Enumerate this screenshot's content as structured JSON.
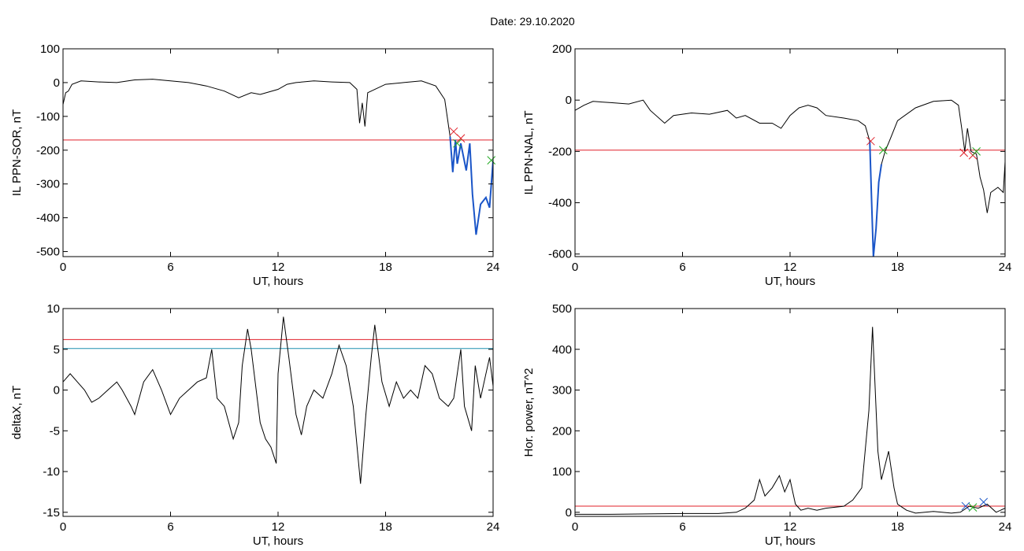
{
  "page": {
    "title": "Date:  29.10.2020"
  },
  "colors": {
    "trace": "#000000",
    "threshold_red": "#e0202a",
    "threshold_cyan": "#1e90b0",
    "highlight_blue": "#1a55c8",
    "marker_red": "#e0202a",
    "marker_green": "#22aa22",
    "marker_blue": "#1a55c8"
  },
  "chart_data": [
    {
      "id": "sor",
      "type": "line",
      "xlabel": "UT, hours",
      "ylabel": "IL PPN-SOR, nT",
      "xlim": [
        0,
        24
      ],
      "ylim": [
        -515,
        100
      ],
      "xticks": [
        0,
        6,
        12,
        18,
        24
      ],
      "yticks": [
        100,
        0,
        -100,
        -200,
        -300,
        -400,
        -500
      ],
      "thresholds": [
        {
          "y": -170,
          "color": "red"
        }
      ],
      "series": [
        {
          "points": [
            [
              0,
              -65
            ],
            [
              0.15,
              -30
            ],
            [
              0.3,
              -25
            ],
            [
              0.5,
              -5
            ],
            [
              1,
              5
            ],
            [
              2,
              2
            ],
            [
              3,
              0
            ],
            [
              4,
              8
            ],
            [
              5,
              10
            ],
            [
              6,
              5
            ],
            [
              7,
              0
            ],
            [
              8,
              -10
            ],
            [
              9,
              -25
            ],
            [
              9.8,
              -45
            ],
            [
              10.5,
              -30
            ],
            [
              11,
              -35
            ],
            [
              12,
              -20
            ],
            [
              12.5,
              -5
            ],
            [
              13,
              0
            ],
            [
              14,
              5
            ],
            [
              15,
              2
            ],
            [
              16,
              0
            ],
            [
              16.4,
              -20
            ],
            [
              16.55,
              -120
            ],
            [
              16.7,
              -60
            ],
            [
              16.85,
              -130
            ],
            [
              17,
              -30
            ],
            [
              18,
              -5
            ],
            [
              19,
              0
            ],
            [
              20,
              5
            ],
            [
              20.8,
              -10
            ],
            [
              21.3,
              -50
            ],
            [
              21.6,
              -160
            ],
            [
              21.75,
              -265
            ],
            [
              21.9,
              -170
            ],
            [
              22.0,
              -240
            ],
            [
              22.2,
              -180
            ],
            [
              22.5,
              -260
            ],
            [
              22.7,
              -180
            ],
            [
              22.85,
              -330
            ],
            [
              23.05,
              -450
            ],
            [
              23.3,
              -360
            ],
            [
              23.6,
              -340
            ],
            [
              23.8,
              -370
            ],
            [
              24,
              -230
            ]
          ]
        }
      ],
      "highlights": [
        {
          "color": "blue",
          "points": [
            [
              21.6,
              -160
            ],
            [
              21.75,
              -265
            ],
            [
              21.9,
              -170
            ],
            [
              22.0,
              -240
            ],
            [
              22.2,
              -180
            ],
            [
              22.5,
              -260
            ],
            [
              22.7,
              -180
            ],
            [
              22.85,
              -330
            ],
            [
              23.05,
              -450
            ],
            [
              23.3,
              -360
            ],
            [
              23.6,
              -340
            ],
            [
              23.8,
              -370
            ],
            [
              24,
              -230
            ]
          ]
        }
      ],
      "markers": [
        {
          "x": 21.8,
          "y": -145,
          "color": "red"
        },
        {
          "x": 22.2,
          "y": -165,
          "color": "red"
        },
        {
          "x": 22.0,
          "y": -180,
          "color": "green"
        },
        {
          "x": 23.9,
          "y": -230,
          "color": "green"
        }
      ]
    },
    {
      "id": "nal",
      "type": "line",
      "xlabel": "UT, hours",
      "ylabel": "IL PPN-NAL, nT",
      "xlim": [
        0,
        24
      ],
      "ylim": [
        -610,
        200
      ],
      "xticks": [
        0,
        6,
        12,
        18,
        24
      ],
      "yticks": [
        200,
        0,
        -200,
        -400,
        -600
      ],
      "thresholds": [
        {
          "y": -195,
          "color": "red"
        }
      ],
      "series": [
        {
          "points": [
            [
              0,
              -40
            ],
            [
              0.5,
              -20
            ],
            [
              1,
              -5
            ],
            [
              2,
              -10
            ],
            [
              3,
              -15
            ],
            [
              3.8,
              0
            ],
            [
              4.2,
              -40
            ],
            [
              5,
              -90
            ],
            [
              5.5,
              -60
            ],
            [
              6.5,
              -50
            ],
            [
              7.5,
              -55
            ],
            [
              8.5,
              -40
            ],
            [
              9,
              -70
            ],
            [
              9.5,
              -60
            ],
            [
              10.3,
              -90
            ],
            [
              11,
              -90
            ],
            [
              11.5,
              -110
            ],
            [
              12,
              -60
            ],
            [
              12.5,
              -30
            ],
            [
              13,
              -20
            ],
            [
              13.5,
              -30
            ],
            [
              14,
              -60
            ],
            [
              15,
              -70
            ],
            [
              15.8,
              -80
            ],
            [
              16.2,
              -100
            ],
            [
              16.45,
              -160
            ],
            [
              16.55,
              -390
            ],
            [
              16.65,
              -610
            ],
            [
              16.8,
              -500
            ],
            [
              16.95,
              -320
            ],
            [
              17.1,
              -250
            ],
            [
              17.3,
              -200
            ],
            [
              17.6,
              -150
            ],
            [
              18,
              -80
            ],
            [
              19,
              -30
            ],
            [
              20,
              -5
            ],
            [
              21,
              0
            ],
            [
              21.4,
              -20
            ],
            [
              21.6,
              -120
            ],
            [
              21.75,
              -200
            ],
            [
              21.9,
              -110
            ],
            [
              22.1,
              -200
            ],
            [
              22.4,
              -210
            ],
            [
              22.6,
              -300
            ],
            [
              22.8,
              -350
            ],
            [
              23.0,
              -440
            ],
            [
              23.2,
              -360
            ],
            [
              23.6,
              -340
            ],
            [
              23.9,
              -360
            ],
            [
              24,
              -240
            ]
          ]
        }
      ],
      "highlights": [
        {
          "color": "blue",
          "points": [
            [
              16.45,
              -160
            ],
            [
              16.55,
              -390
            ],
            [
              16.65,
              -610
            ],
            [
              16.8,
              -500
            ],
            [
              16.95,
              -320
            ],
            [
              17.1,
              -250
            ]
          ]
        }
      ],
      "markers": [
        {
          "x": 16.5,
          "y": -160,
          "color": "red"
        },
        {
          "x": 21.7,
          "y": -205,
          "color": "red"
        },
        {
          "x": 22.2,
          "y": -215,
          "color": "red"
        },
        {
          "x": 17.2,
          "y": -195,
          "color": "green"
        },
        {
          "x": 22.4,
          "y": -200,
          "color": "green"
        }
      ]
    },
    {
      "id": "deltax",
      "type": "line",
      "xlabel": "UT, hours",
      "ylabel": "deltaX, nT",
      "xlim": [
        0,
        24
      ],
      "ylim": [
        -15.5,
        10
      ],
      "xticks": [
        0,
        6,
        12,
        18,
        24
      ],
      "yticks": [
        10,
        5,
        0,
        -5,
        -10,
        -15
      ],
      "thresholds": [
        {
          "y": 6.2,
          "color": "red"
        },
        {
          "y": 5.1,
          "color": "cyan"
        }
      ],
      "series": [
        {
          "points": [
            [
              0,
              1
            ],
            [
              0.4,
              2
            ],
            [
              0.8,
              1
            ],
            [
              1.2,
              0
            ],
            [
              1.6,
              -1.5
            ],
            [
              2,
              -1
            ],
            [
              2.5,
              0
            ],
            [
              3,
              1
            ],
            [
              3.3,
              0
            ],
            [
              3.8,
              -2
            ],
            [
              4,
              -3
            ],
            [
              4.5,
              1
            ],
            [
              5,
              2.5
            ],
            [
              5.5,
              0
            ],
            [
              6,
              -3
            ],
            [
              6.5,
              -1
            ],
            [
              7,
              0
            ],
            [
              7.5,
              1
            ],
            [
              8,
              1.5
            ],
            [
              8.3,
              5
            ],
            [
              8.6,
              -1
            ],
            [
              9,
              -2
            ],
            [
              9.5,
              -6
            ],
            [
              9.8,
              -4
            ],
            [
              10,
              3
            ],
            [
              10.3,
              7.5
            ],
            [
              10.5,
              5
            ],
            [
              11,
              -4
            ],
            [
              11.3,
              -6
            ],
            [
              11.6,
              -7
            ],
            [
              11.9,
              -9
            ],
            [
              12,
              2
            ],
            [
              12.3,
              9
            ],
            [
              12.6,
              4
            ],
            [
              13,
              -3
            ],
            [
              13.3,
              -5.5
            ],
            [
              13.6,
              -2
            ],
            [
              14,
              0
            ],
            [
              14.5,
              -1
            ],
            [
              15,
              2
            ],
            [
              15.4,
              5.5
            ],
            [
              15.8,
              3
            ],
            [
              16.2,
              -2
            ],
            [
              16.6,
              -11.5
            ],
            [
              16.9,
              -3
            ],
            [
              17.2,
              4
            ],
            [
              17.4,
              8
            ],
            [
              17.8,
              1
            ],
            [
              18.2,
              -2
            ],
            [
              18.6,
              1
            ],
            [
              19,
              -1
            ],
            [
              19.4,
              0
            ],
            [
              19.8,
              -1
            ],
            [
              20.2,
              3
            ],
            [
              20.6,
              2
            ],
            [
              21,
              -1
            ],
            [
              21.5,
              -2
            ],
            [
              21.8,
              -1
            ],
            [
              22.2,
              5
            ],
            [
              22.4,
              -2
            ],
            [
              22.8,
              -5
            ],
            [
              23,
              3
            ],
            [
              23.3,
              -1
            ],
            [
              23.6,
              2
            ],
            [
              23.8,
              4
            ],
            [
              24,
              0.5
            ]
          ]
        }
      ],
      "highlights": [],
      "markers": []
    },
    {
      "id": "hor",
      "type": "line",
      "xlabel": "UT, hours",
      "ylabel": "Hor. power, nT^2",
      "xlim": [
        0,
        24
      ],
      "ylim": [
        -10,
        500
      ],
      "xticks": [
        0,
        6,
        12,
        18,
        24
      ],
      "yticks": [
        500,
        400,
        300,
        200,
        100,
        0
      ],
      "thresholds": [
        {
          "y": 15,
          "color": "red"
        }
      ],
      "series": [
        {
          "points": [
            [
              0,
              -5
            ],
            [
              2,
              -5
            ],
            [
              4,
              -4
            ],
            [
              6,
              -3
            ],
            [
              8,
              -3
            ],
            [
              9,
              0
            ],
            [
              9.5,
              10
            ],
            [
              10,
              30
            ],
            [
              10.3,
              80
            ],
            [
              10.6,
              40
            ],
            [
              11,
              60
            ],
            [
              11.4,
              90
            ],
            [
              11.7,
              50
            ],
            [
              12,
              80
            ],
            [
              12.3,
              20
            ],
            [
              12.6,
              5
            ],
            [
              13,
              10
            ],
            [
              13.5,
              5
            ],
            [
              14,
              10
            ],
            [
              15,
              15
            ],
            [
              15.5,
              30
            ],
            [
              16,
              60
            ],
            [
              16.4,
              250
            ],
            [
              16.6,
              455
            ],
            [
              16.9,
              150
            ],
            [
              17.1,
              80
            ],
            [
              17.5,
              150
            ],
            [
              17.8,
              60
            ],
            [
              18,
              20
            ],
            [
              18.5,
              5
            ],
            [
              19,
              -2
            ],
            [
              20,
              2
            ],
            [
              21,
              -2
            ],
            [
              21.5,
              0
            ],
            [
              22,
              15
            ],
            [
              22.5,
              10
            ],
            [
              23,
              20
            ],
            [
              23.5,
              0
            ],
            [
              24,
              10
            ]
          ]
        }
      ],
      "highlights": [],
      "markers": [
        {
          "x": 21.8,
          "y": 15,
          "color": "blue"
        },
        {
          "x": 22.8,
          "y": 25,
          "color": "blue"
        },
        {
          "x": 22.2,
          "y": 12,
          "color": "green"
        }
      ]
    }
  ]
}
